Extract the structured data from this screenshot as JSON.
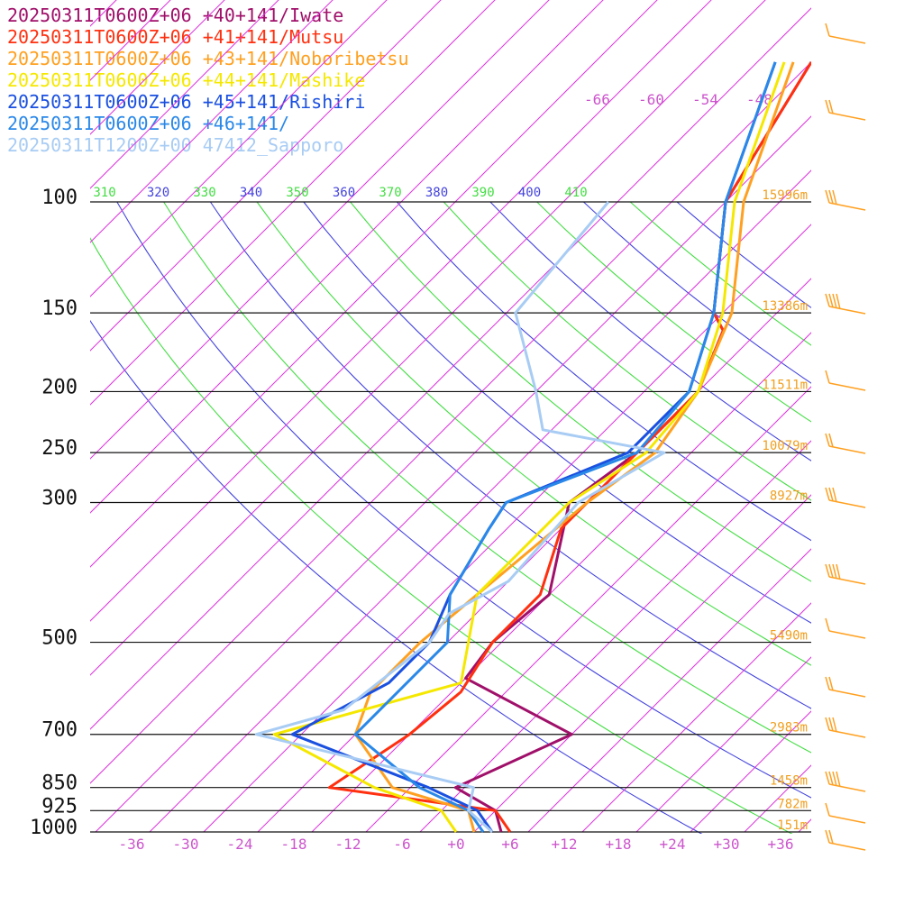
{
  "legend": [
    {
      "text": "20250311T0600Z+06 +40+141/Iwate",
      "color": "#a0106a"
    },
    {
      "text": "20250311T0600Z+06 +41+141/Mutsu",
      "color": "#ff3010"
    },
    {
      "text": "20250311T0600Z+06 +43+141/Noboribetsu",
      "color": "#ffa020"
    },
    {
      "text": "20250311T0600Z+06 +44+141/Mashike",
      "color": "#f5e800"
    },
    {
      "text": "20250311T0600Z+06 +45+141/Rishiri",
      "color": "#1a50e0"
    },
    {
      "text": "20250311T0600Z+06 +46+141/",
      "color": "#2a88e8"
    },
    {
      "text": "20250311T1200Z+00 47412_Sapporo",
      "color": "#a8ccf4"
    }
  ],
  "chart_data": {
    "type": "line",
    "subtype": "skew-T log-P sounding",
    "pressure_levels": [
      "100",
      "150",
      "200",
      "250",
      "300",
      "500",
      "700",
      "850",
      "925",
      "1000"
    ],
    "height_labels": [
      {
        "p": 100,
        "text": "15996m"
      },
      {
        "p": 150,
        "text": "13386m"
      },
      {
        "p": 200,
        "text": "11511m"
      },
      {
        "p": 250,
        "text": "10079m"
      },
      {
        "p": 300,
        "text": "8927m"
      },
      {
        "p": 500,
        "text": "5490m"
      },
      {
        "p": 700,
        "text": "2983m"
      },
      {
        "p": 850,
        "text": "1458m"
      },
      {
        "p": 925,
        "text": "782m"
      },
      {
        "p": 1000,
        "text": "151m"
      }
    ],
    "x_ticks": [
      "-36",
      "-30",
      "-24",
      "-18",
      "-12",
      "-6",
      "+0",
      "+6",
      "+12",
      "+18",
      "+24",
      "+30",
      "+36"
    ],
    "x_tick_values": [
      -36,
      -30,
      -24,
      -18,
      -12,
      -6,
      0,
      6,
      12,
      18,
      24,
      30,
      36
    ],
    "top_isotherm_labels": [
      "-66",
      "-60",
      "-54",
      "-48"
    ],
    "theta_labels": [
      {
        "text": "310",
        "color": "#44dd44"
      },
      {
        "text": "320",
        "color": "#4444dd"
      },
      {
        "text": "330",
        "color": "#44dd44"
      },
      {
        "text": "340",
        "color": "#4444dd"
      },
      {
        "text": "350",
        "color": "#44dd44"
      },
      {
        "text": "360",
        "color": "#4444dd"
      },
      {
        "text": "370",
        "color": "#44dd44"
      },
      {
        "text": "380",
        "color": "#4444dd"
      },
      {
        "text": "390",
        "color": "#44dd44"
      },
      {
        "text": "400",
        "color": "#4444dd"
      },
      {
        "text": "410",
        "color": "#44dd44"
      }
    ],
    "xlim": [
      -40,
      40
    ],
    "series": [
      {
        "name": "20250311T0600Z+06 +40+141/Iwate",
        "color": "#a0106a",
        "points": [
          [
            5,
            1000
          ],
          [
            2,
            925
          ],
          [
            -5,
            850
          ],
          [
            2,
            700
          ],
          [
            -16,
            570
          ],
          [
            -17,
            500
          ],
          [
            -16,
            420
          ],
          [
            -24,
            300
          ],
          [
            -22,
            250
          ],
          [
            -22,
            200
          ],
          [
            -26,
            160
          ],
          [
            -29,
            150
          ],
          [
            -40,
            100
          ],
          [
            -46,
            60
          ]
        ]
      },
      {
        "name": "20250311T0600Z+06 +41+141/Mutsu",
        "color": "#ff3010",
        "points": [
          [
            6,
            1000
          ],
          [
            2,
            925
          ],
          [
            -19,
            850
          ],
          [
            -16,
            700
          ],
          [
            -15,
            600
          ],
          [
            -17,
            500
          ],
          [
            -17,
            420
          ],
          [
            -22,
            330
          ],
          [
            -22,
            250
          ],
          [
            -22,
            200
          ],
          [
            -26,
            160
          ],
          [
            -29,
            150
          ],
          [
            -40,
            100
          ],
          [
            -46,
            60
          ]
        ]
      },
      {
        "name": "20250311T0600Z+06 +43+141/Noboribetsu",
        "color": "#ffa020",
        "points": [
          [
            2,
            1000
          ],
          [
            -1,
            925
          ],
          [
            -12,
            850
          ],
          [
            -22,
            700
          ],
          [
            -25,
            600
          ],
          [
            -25,
            500
          ],
          [
            -24,
            420
          ],
          [
            -22,
            300
          ],
          [
            -20,
            250
          ],
          [
            -22,
            200
          ],
          [
            -27,
            150
          ],
          [
            -38,
            100
          ],
          [
            -48,
            60
          ]
        ]
      },
      {
        "name": "20250311T0600Z+06 +44+141/Mashike",
        "color": "#f5e800",
        "points": [
          [
            0,
            1000
          ],
          [
            -4,
            925
          ],
          [
            -14,
            850
          ],
          [
            -31,
            700
          ],
          [
            -16,
            580
          ],
          [
            -24,
            420
          ],
          [
            -24,
            300
          ],
          [
            -21,
            250
          ],
          [
            -22,
            200
          ],
          [
            -28,
            150
          ],
          [
            -39,
            100
          ],
          [
            -49,
            60
          ]
        ]
      },
      {
        "name": "20250311T0600Z+06 +45+141/Rishiri",
        "color": "#1a50e0",
        "points": [
          [
            4,
            1000
          ],
          [
            0,
            925
          ],
          [
            -8,
            850
          ],
          [
            -29,
            700
          ],
          [
            -24,
            580
          ],
          [
            -24,
            500
          ],
          [
            -27,
            420
          ],
          [
            -30,
            330
          ],
          [
            -31,
            300
          ],
          [
            -23,
            250
          ],
          [
            -23,
            200
          ],
          [
            -29,
            150
          ],
          [
            -40,
            100
          ],
          [
            -50,
            60
          ]
        ]
      },
      {
        "name": "20250311T0600Z+06 +46+141/",
        "color": "#2a88e8",
        "points": [
          [
            3,
            1000
          ],
          [
            -1,
            925
          ],
          [
            -9,
            850
          ],
          [
            -22,
            700
          ],
          [
            -22,
            500
          ],
          [
            -27,
            420
          ],
          [
            -30,
            330
          ],
          [
            -31,
            300
          ],
          [
            -22,
            250
          ],
          [
            -23,
            200
          ],
          [
            -29,
            150
          ],
          [
            -40,
            100
          ],
          [
            -50,
            60
          ]
        ]
      },
      {
        "name": "20250311T1200Z+00 47412_Sapporo",
        "color": "#a8ccf4",
        "points": [
          [
            4,
            1000
          ],
          [
            -1,
            925
          ],
          [
            -3,
            850
          ],
          [
            -33,
            700
          ],
          [
            -26,
            640
          ],
          [
            -24,
            500
          ],
          [
            -25,
            450
          ],
          [
            -22,
            400
          ],
          [
            -23,
            300
          ],
          [
            -19,
            250
          ],
          [
            -35,
            230
          ],
          [
            -40,
            200
          ],
          [
            -51,
            150
          ],
          [
            -53,
            100
          ]
        ]
      }
    ]
  }
}
